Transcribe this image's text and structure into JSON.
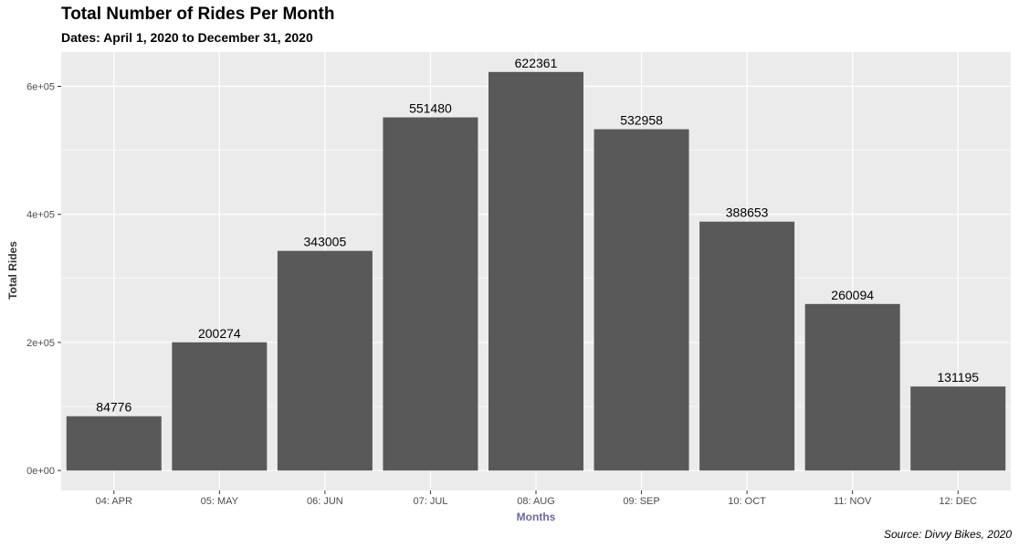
{
  "chart_data": {
    "type": "bar",
    "title": "Total Number of Rides Per Month",
    "subtitle": "Dates: April 1, 2020 to December 31, 2020",
    "caption": "Source: Divvy Bikes, 2020",
    "xlabel": "Months",
    "ylabel": "Total Rides",
    "categories": [
      "04: APR",
      "05: MAY",
      "06: JUN",
      "07: JUL",
      "08: AUG",
      "09: SEP",
      "10: OCT",
      "11: NOV",
      "12: DEC"
    ],
    "values": [
      84776,
      200274,
      343005,
      551480,
      622361,
      532958,
      388653,
      260094,
      131195
    ],
    "data_labels": [
      "84776",
      "200274",
      "343005",
      "551480",
      "622361",
      "532958",
      "388653",
      "260094",
      "131195"
    ],
    "yticks": [
      0,
      200000,
      400000,
      600000
    ],
    "ytick_labels": [
      "0e+00",
      "2e+05",
      "4e+05",
      "6e+05"
    ],
    "ylim": [
      -31118,
      653479
    ],
    "grid": true,
    "colors": {
      "bar": "#595959",
      "panel_background": "#ebebeb",
      "grid": "#ffffff",
      "xlabel": "#6b6b9b",
      "ylabel": "#333333"
    }
  }
}
